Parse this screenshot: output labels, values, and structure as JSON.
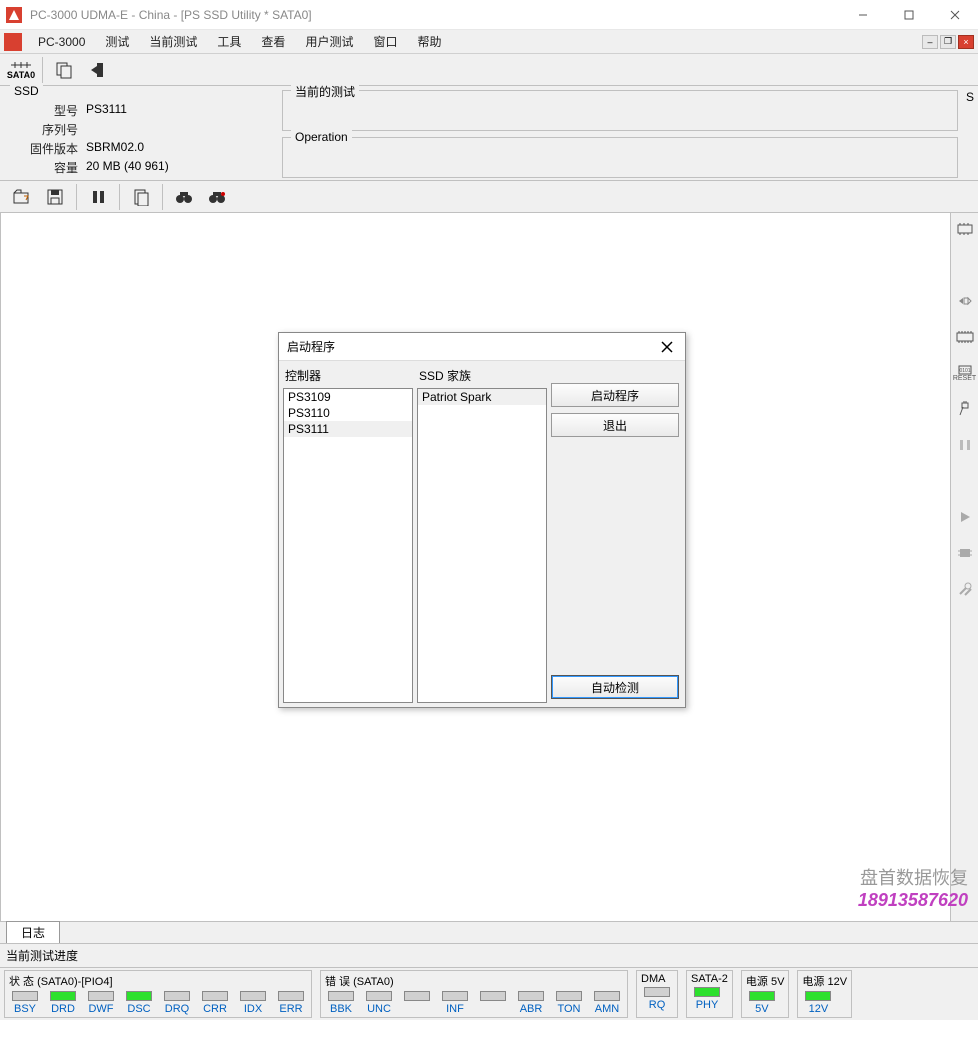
{
  "window": {
    "title": "PC-3000 UDMA-E - China - [PS SSD Utility * SATA0]"
  },
  "menu": {
    "app": "PC-3000",
    "items": [
      "测试",
      "当前测试",
      "工具",
      "查看",
      "用户测试",
      "窗口",
      "帮助"
    ]
  },
  "device_tab": "SATA0",
  "ssd": {
    "section": "SSD",
    "model_label": "型号",
    "model": "PS3111",
    "serial_label": "序列号",
    "serial": "",
    "fw_label": "固件版本",
    "fw": "SBRM02.0",
    "cap_label": "容量",
    "cap": "20 MB (40 961)"
  },
  "panels": {
    "current_test": "当前的测试",
    "operation": "Operation"
  },
  "right_label": "S",
  "dialog": {
    "title": "启动程序",
    "controller_label": "控制器",
    "family_label": "SSD 家族",
    "controllers": [
      "PS3109",
      "PS3110",
      "PS3111"
    ],
    "controllers_selected": 2,
    "families": [
      "Patriot Spark"
    ],
    "families_selected": 0,
    "btn_start": "启动程序",
    "btn_exit": "退出",
    "btn_auto": "自动检测"
  },
  "watermark": {
    "line1": "盘首数据恢复",
    "phone": "18913587620"
  },
  "log_tab": "日志",
  "progress_label": "当前测试进度",
  "status": {
    "group1_title": "状 态 (SATA0)-[PIO4]",
    "group1": [
      {
        "lbl": "BSY",
        "on": false
      },
      {
        "lbl": "DRD",
        "on": true
      },
      {
        "lbl": "DWF",
        "on": false
      },
      {
        "lbl": "DSC",
        "on": true
      },
      {
        "lbl": "DRQ",
        "on": false
      },
      {
        "lbl": "CRR",
        "on": false
      },
      {
        "lbl": "IDX",
        "on": false
      },
      {
        "lbl": "ERR",
        "on": false
      }
    ],
    "group2_title": "错 误 (SATA0)",
    "group2": [
      {
        "lbl": "BBK",
        "on": false
      },
      {
        "lbl": "UNC",
        "on": false
      },
      {
        "lbl": "",
        "on": false
      },
      {
        "lbl": "INF",
        "on": false
      },
      {
        "lbl": "",
        "on": false
      },
      {
        "lbl": "ABR",
        "on": false
      },
      {
        "lbl": "TON",
        "on": false
      },
      {
        "lbl": "AMN",
        "on": false
      }
    ],
    "dma_title": "DMA",
    "dma": [
      {
        "lbl": "RQ",
        "on": false
      }
    ],
    "sata2_title": "SATA-2",
    "sata2": [
      {
        "lbl": "PHY",
        "on": true
      }
    ],
    "p5_title": "电源 5V",
    "p5": [
      {
        "lbl": "5V",
        "on": true
      }
    ],
    "p12_title": "电源 12V",
    "p12": [
      {
        "lbl": "12V",
        "on": true
      }
    ]
  }
}
